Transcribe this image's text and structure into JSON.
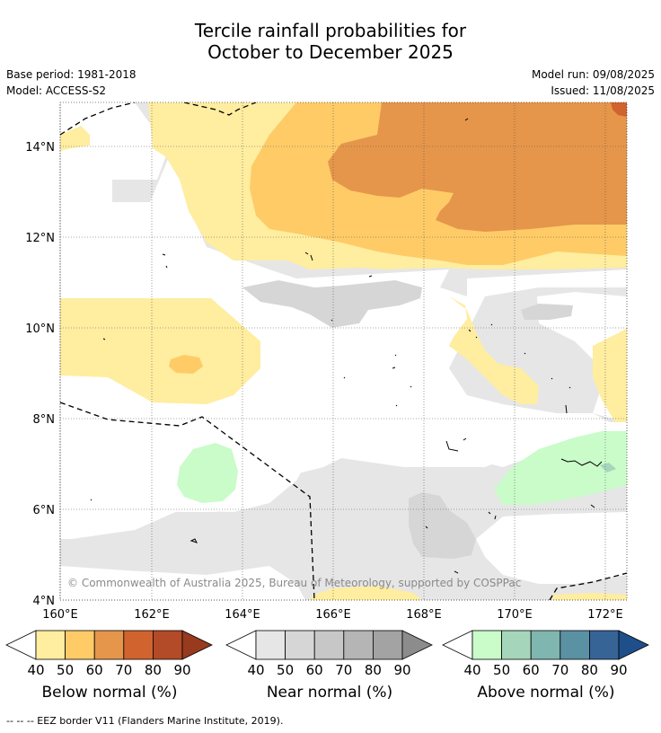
{
  "title_line1": "Tercile rainfall probabilities for",
  "title_line2": "October to December 2025",
  "base_period": "Base period: 1981-2018",
  "model": "Model: ACCESS-S2",
  "model_run": "Model run: 09/08/2025",
  "issued": "Issued: 11/08/2025",
  "copyright": "© Commonwealth of Australia 2025, Bureau of Meteorology, supported by COSPPac",
  "footnote": "-- -- -- EEZ border V11 (Flanders Marine Institute, 2019).",
  "map": {
    "lon_labels": [
      "160°E",
      "162°E",
      "164°E",
      "166°E",
      "168°E",
      "170°E",
      "172°E"
    ],
    "lat_labels": [
      "14°N",
      "12°N",
      "10°N",
      "8°N",
      "6°N",
      "4°N"
    ],
    "colors": {
      "below_40": "#ffeda0",
      "below_50": "#fecb67",
      "below_60": "#e5964b",
      "near_40": "#e6e6e6",
      "near_50": "#d6d6d6",
      "above_40": "#c9fcc9",
      "above_50": "#a5d6bc"
    }
  },
  "colorbars": [
    {
      "label": "Below normal (%)",
      "ticks": [
        "40",
        "50",
        "60",
        "70",
        "80",
        "90"
      ],
      "colors": [
        "#ffeda0",
        "#fecb67",
        "#e5964b",
        "#d1632f",
        "#b34a28",
        "#973a1e"
      ]
    },
    {
      "label": "Near normal (%)",
      "ticks": [
        "40",
        "50",
        "60",
        "70",
        "80",
        "90"
      ],
      "colors": [
        "#e6e6e6",
        "#d6d6d6",
        "#c7c7c7",
        "#b5b5b5",
        "#a3a3a3",
        "#8c8c8c"
      ]
    },
    {
      "label": "Above normal (%)",
      "ticks": [
        "40",
        "50",
        "60",
        "70",
        "80",
        "90"
      ],
      "colors": [
        "#c9fcc9",
        "#a5d6bc",
        "#7fb6b0",
        "#5a91a3",
        "#366497",
        "#1f4f8a"
      ]
    }
  ]
}
